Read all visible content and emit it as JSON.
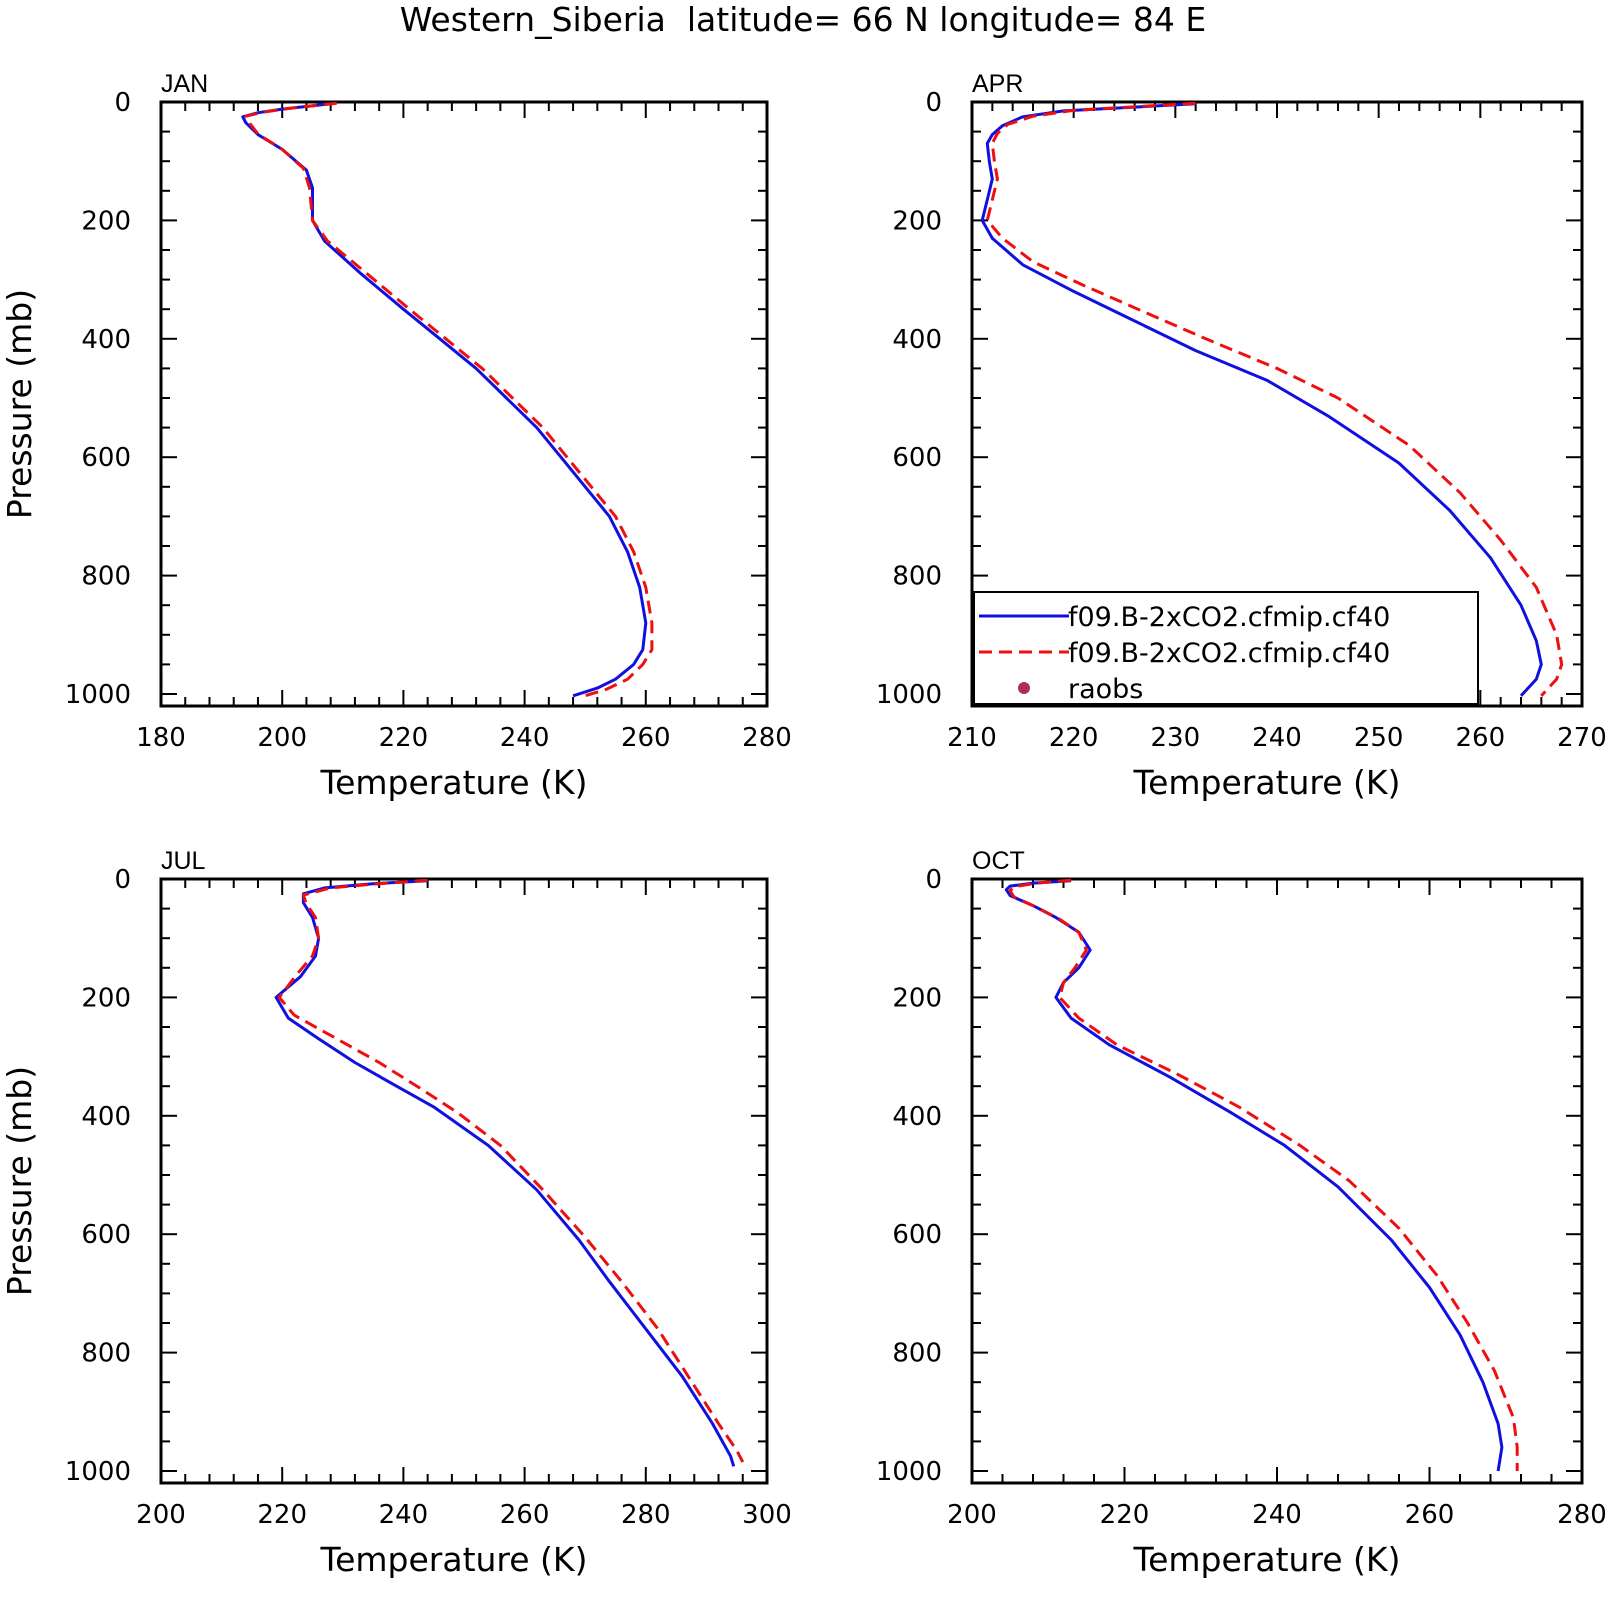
{
  "title": "Western_Siberia  latitude= 66 N longitude= 84 E",
  "colors": {
    "series_1": "#1010e0",
    "series_2": "#ee1010",
    "raobs": "#a8305a"
  },
  "legend": {
    "entries": [
      {
        "label": "f09.B-2xCO2.cfmip.cf40",
        "style": "solid",
        "color": "#1010e0"
      },
      {
        "label": "f09.B-2xCO2.cfmip.cf40",
        "style": "dashed",
        "color": "#ee1010"
      },
      {
        "label": "raobs",
        "style": "marker",
        "color": "#a8305a"
      }
    ]
  },
  "chart_data": [
    {
      "type": "line",
      "panel_label": "JAN",
      "xlabel": "Temperature (K)",
      "ylabel": "Pressure (mb)",
      "xlim": [
        180,
        280
      ],
      "ylim": [
        0,
        1000
      ],
      "y_inverted": true,
      "x_ticks": [
        180,
        200,
        220,
        240,
        260,
        280
      ],
      "y_ticks": [
        0,
        200,
        400,
        600,
        800,
        1000
      ],
      "series": [
        {
          "style": "solid",
          "color": "#1010e0",
          "points": [
            [
              208,
              3
            ],
            [
              200,
              12
            ],
            [
              196,
              18
            ],
            [
              193.5,
              25
            ],
            [
              194,
              35
            ],
            [
              196,
              55
            ],
            [
              200,
              80
            ],
            [
              204,
              115
            ],
            [
              205,
              145
            ],
            [
              205,
              200
            ],
            [
              207,
              235
            ],
            [
              213,
              290
            ],
            [
              220,
              350
            ],
            [
              226,
              400
            ],
            [
              232,
              450
            ],
            [
              237,
              500
            ],
            [
              242,
              550
            ],
            [
              246,
              600
            ],
            [
              250,
              650
            ],
            [
              254,
              700
            ],
            [
              257,
              760
            ],
            [
              259,
              820
            ],
            [
              260,
              880
            ],
            [
              259.5,
              925
            ],
            [
              258,
              950
            ],
            [
              255,
              975
            ],
            [
              252,
              990
            ],
            [
              248,
              1003
            ]
          ]
        },
        {
          "style": "dashed",
          "color": "#ee1010",
          "points": [
            [
              209,
              2
            ],
            [
              201,
              11
            ],
            [
              197,
              17
            ],
            [
              194,
              24
            ],
            [
              194.5,
              34
            ],
            [
              196,
              54
            ],
            [
              200,
              80
            ],
            [
              203.5,
              112
            ],
            [
              204.5,
              145
            ],
            [
              205,
              200
            ],
            [
              207.5,
              235
            ],
            [
              214,
              290
            ],
            [
              221,
              350
            ],
            [
              227,
              400
            ],
            [
              233,
              450
            ],
            [
              238,
              500
            ],
            [
              243,
              550
            ],
            [
              247,
              600
            ],
            [
              251,
              650
            ],
            [
              255,
              700
            ],
            [
              258,
              760
            ],
            [
              260,
              820
            ],
            [
              261,
              880
            ],
            [
              261,
              925
            ],
            [
              259.5,
              950
            ],
            [
              257,
              975
            ],
            [
              253.5,
              992
            ],
            [
              249,
              1006
            ]
          ]
        }
      ]
    },
    {
      "type": "line",
      "panel_label": "APR",
      "xlabel": "Temperature (K)",
      "ylabel": "",
      "xlim": [
        210,
        270
      ],
      "ylim": [
        0,
        1000
      ],
      "y_inverted": true,
      "x_ticks": [
        210,
        220,
        230,
        240,
        250,
        260,
        270
      ],
      "y_ticks": [
        0,
        200,
        400,
        600,
        800,
        1000
      ],
      "series": [
        {
          "style": "solid",
          "color": "#1010e0",
          "points": [
            [
              232,
              3
            ],
            [
              219,
              15
            ],
            [
              215,
              25
            ],
            [
              213,
              40
            ],
            [
              212,
              55
            ],
            [
              211.5,
              70
            ],
            [
              211.7,
              100
            ],
            [
              212,
              130
            ],
            [
              211.5,
              165
            ],
            [
              211,
              200
            ],
            [
              212,
              230
            ],
            [
              215,
              275
            ],
            [
              220,
              320
            ],
            [
              226,
              370
            ],
            [
              232,
              420
            ],
            [
              239,
              470
            ],
            [
              245,
              530
            ],
            [
              252,
              610
            ],
            [
              257,
              690
            ],
            [
              261,
              770
            ],
            [
              264,
              850
            ],
            [
              265.5,
              910
            ],
            [
              266,
              950
            ],
            [
              265.5,
              975
            ],
            [
              264,
              1003
            ]
          ]
        },
        {
          "style": "dashed",
          "color": "#ee1010",
          "points": [
            [
              232,
              2
            ],
            [
              220,
              14
            ],
            [
              216,
              24
            ],
            [
              213.5,
              38
            ],
            [
              212.5,
              53
            ],
            [
              212,
              70
            ],
            [
              212.2,
              100
            ],
            [
              212.5,
              130
            ],
            [
              212,
              165
            ],
            [
              211.5,
              200
            ],
            [
              213,
              230
            ],
            [
              216,
              270
            ],
            [
              221,
              310
            ],
            [
              227,
              355
            ],
            [
              233,
              400
            ],
            [
              240,
              450
            ],
            [
              246,
              500
            ],
            [
              253,
              580
            ],
            [
              258,
              660
            ],
            [
              262,
              740
            ],
            [
              265.5,
              820
            ],
            [
              267.5,
              900
            ],
            [
              268,
              950
            ],
            [
              267.5,
              975
            ],
            [
              266,
              1003
            ]
          ]
        }
      ]
    },
    {
      "type": "line",
      "panel_label": "JUL",
      "xlabel": "Temperature (K)",
      "ylabel": "Pressure (mb)",
      "xlim": [
        200,
        300
      ],
      "ylim": [
        0,
        1000
      ],
      "y_inverted": true,
      "x_ticks": [
        200,
        220,
        240,
        260,
        280,
        300
      ],
      "y_ticks": [
        0,
        200,
        400,
        600,
        800,
        1000
      ],
      "series": [
        {
          "style": "solid",
          "color": "#1010e0",
          "points": [
            [
              244,
              3
            ],
            [
              235,
              8
            ],
            [
              227,
              15
            ],
            [
              223.5,
              25
            ],
            [
              223.5,
              40
            ],
            [
              225,
              65
            ],
            [
              226,
              100
            ],
            [
              225.5,
              130
            ],
            [
              223,
              165
            ],
            [
              219,
              200
            ],
            [
              221,
              235
            ],
            [
              226,
              270
            ],
            [
              232,
              310
            ],
            [
              238,
              345
            ],
            [
              245,
              385
            ],
            [
              254,
              450
            ],
            [
              262,
              525
            ],
            [
              269,
              610
            ],
            [
              274,
              680
            ],
            [
              280,
              760
            ],
            [
              286,
              840
            ],
            [
              291,
              920
            ],
            [
              294,
              975
            ],
            [
              294.5,
              992
            ]
          ]
        },
        {
          "style": "dashed",
          "color": "#ee1010",
          "points": [
            [
              244,
              2
            ],
            [
              236,
              8
            ],
            [
              228,
              15
            ],
            [
              223.5,
              27
            ],
            [
              224,
              42
            ],
            [
              225.5,
              65
            ],
            [
              226,
              100
            ],
            [
              225,
              130
            ],
            [
              222.5,
              160
            ],
            [
              219.5,
              200
            ],
            [
              222,
              230
            ],
            [
              229,
              270
            ],
            [
              236,
              310
            ],
            [
              243,
              355
            ],
            [
              249,
              395
            ],
            [
              256,
              450
            ],
            [
              263,
              525
            ],
            [
              270,
              605
            ],
            [
              276,
              680
            ],
            [
              282,
              760
            ],
            [
              287,
              840
            ],
            [
              292,
              920
            ],
            [
              295,
              965
            ],
            [
              296,
              985
            ]
          ]
        }
      ]
    },
    {
      "type": "line",
      "panel_label": "OCT",
      "xlabel": "Temperature (K)",
      "ylabel": "",
      "xlim": [
        200,
        280
      ],
      "ylim": [
        0,
        1000
      ],
      "y_inverted": true,
      "x_ticks": [
        200,
        220,
        240,
        260,
        280
      ],
      "y_ticks": [
        0,
        200,
        400,
        600,
        800,
        1000
      ],
      "series": [
        {
          "style": "solid",
          "color": "#1010e0",
          "points": [
            [
              213,
              3
            ],
            [
              208,
              7
            ],
            [
              205,
              12
            ],
            [
              204.5,
              18
            ],
            [
              205,
              28
            ],
            [
              208,
              45
            ],
            [
              211,
              65
            ],
            [
              214,
              90
            ],
            [
              215.5,
              120
            ],
            [
              214,
              150
            ],
            [
              212,
              175
            ],
            [
              211,
              200
            ],
            [
              213,
              235
            ],
            [
              218,
              280
            ],
            [
              226,
              335
            ],
            [
              234,
              395
            ],
            [
              241,
              450
            ],
            [
              248,
              520
            ],
            [
              255,
              610
            ],
            [
              260,
              690
            ],
            [
              264,
              770
            ],
            [
              267,
              850
            ],
            [
              269,
              920
            ],
            [
              269.5,
              960
            ],
            [
              269,
              1000
            ]
          ]
        },
        {
          "style": "dashed",
          "color": "#ee1010",
          "points": [
            [
              213,
              2
            ],
            [
              208.5,
              7
            ],
            [
              205.5,
              13
            ],
            [
              205,
              20
            ],
            [
              205.5,
              30
            ],
            [
              208.5,
              48
            ],
            [
              211.5,
              68
            ],
            [
              214,
              90
            ],
            [
              215,
              120
            ],
            [
              213.5,
              150
            ],
            [
              212,
              175
            ],
            [
              211.5,
              200
            ],
            [
              214,
              235
            ],
            [
              219,
              280
            ],
            [
              227,
              330
            ],
            [
              235,
              385
            ],
            [
              243,
              450
            ],
            [
              249.5,
              510
            ],
            [
              256,
              590
            ],
            [
              261,
              670
            ],
            [
              265,
              750
            ],
            [
              268.5,
              830
            ],
            [
              271,
              910
            ],
            [
              271.5,
              960
            ],
            [
              271.5,
              1000
            ]
          ]
        }
      ]
    }
  ]
}
